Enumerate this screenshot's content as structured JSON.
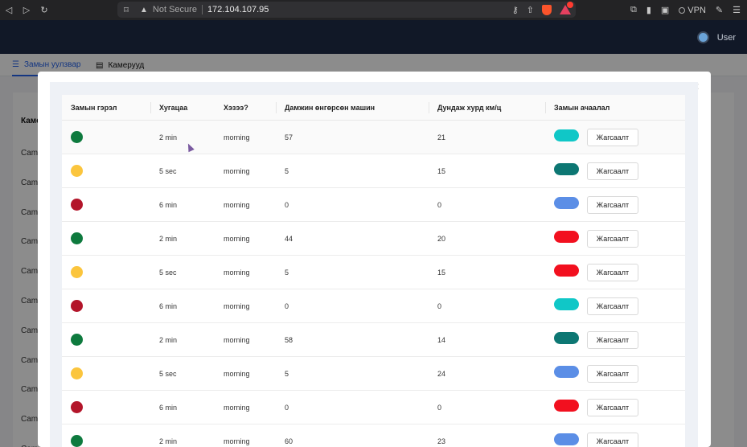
{
  "browser": {
    "security_label": "Not Secure",
    "url": "172.104.107.95",
    "vpn_label": "VPN",
    "extension_badge": "1"
  },
  "app": {
    "user_label": "User"
  },
  "tabs": [
    {
      "label": "Замын уулзвар",
      "icon": "route-icon",
      "active": true
    },
    {
      "label": "Камерууд",
      "icon": "document-icon",
      "active": false
    }
  ],
  "background_table": {
    "header": "Каме",
    "rows": [
      "Came",
      "Came",
      "Came",
      "Came",
      "Came",
      "Came",
      "Came",
      "Came",
      "Came",
      "Came",
      "Came"
    ]
  },
  "modal": {
    "columns": [
      "Замын гэрэл",
      "Хугацаа",
      "Хэзээ?",
      "Дамжин өнгөрсөн машин",
      "Дундаж хурд км/ц",
      "Замын ачаалал"
    ],
    "rows": [
      {
        "light": "green",
        "duration": "2 min",
        "when": "morning",
        "cars": "57",
        "speed": "21",
        "load_color": "#10c7c7",
        "action": "Жагсаалт"
      },
      {
        "light": "yellow",
        "duration": "5 sec",
        "when": "morning",
        "cars": "5",
        "speed": "15",
        "load_color": "#0d7773",
        "action": "Жагсаалт"
      },
      {
        "light": "red",
        "duration": "6 min",
        "when": "morning",
        "cars": "0",
        "speed": "0",
        "load_color": "#5b8ee6",
        "action": "Жагсаалт"
      },
      {
        "light": "green",
        "duration": "2 min",
        "when": "morning",
        "cars": "44",
        "speed": "20",
        "load_color": "#f2101f",
        "action": "Жагсаалт"
      },
      {
        "light": "yellow",
        "duration": "5 sec",
        "when": "morning",
        "cars": "5",
        "speed": "15",
        "load_color": "#f2101f",
        "action": "Жагсаалт"
      },
      {
        "light": "red",
        "duration": "6 min",
        "when": "morning",
        "cars": "0",
        "speed": "0",
        "load_color": "#10c7c7",
        "action": "Жагсаалт"
      },
      {
        "light": "green",
        "duration": "2 min",
        "when": "morning",
        "cars": "58",
        "speed": "14",
        "load_color": "#0d7773",
        "action": "Жагсаалт"
      },
      {
        "light": "yellow",
        "duration": "5 sec",
        "when": "morning",
        "cars": "5",
        "speed": "24",
        "load_color": "#5b8ee6",
        "action": "Жагсаалт"
      },
      {
        "light": "red",
        "duration": "6 min",
        "when": "morning",
        "cars": "0",
        "speed": "0",
        "load_color": "#f2101f",
        "action": "Жагсаалт"
      },
      {
        "light": "green",
        "duration": "2 min",
        "when": "morning",
        "cars": "60",
        "speed": "23",
        "load_color": "#5b8ee6",
        "action": "Жагсаалт"
      }
    ]
  },
  "colors": {
    "light_green": "#0e7a3e",
    "light_yellow": "#fbc53d",
    "light_red": "#b3152a",
    "accent": "#2563eb",
    "header_bg": "#111827"
  }
}
